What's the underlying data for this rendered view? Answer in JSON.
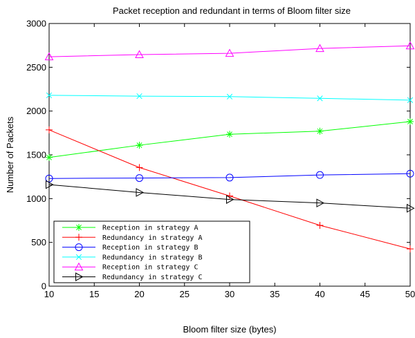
{
  "chart_data": {
    "type": "line",
    "title": "Packet reception and redundant in terms of Bloom filter size",
    "xlabel": "Bloom filter size (bytes)",
    "ylabel": "Number of Packets",
    "xlim": [
      10,
      50
    ],
    "ylim": [
      0,
      3000
    ],
    "x": [
      10,
      20,
      30,
      40,
      50
    ],
    "xticks": [
      10,
      15,
      20,
      25,
      30,
      35,
      40,
      45,
      50
    ],
    "yticks": [
      0,
      500,
      1000,
      1500,
      2000,
      2500,
      3000
    ],
    "grid": false,
    "legend_position": "bottom-left",
    "series": [
      {
        "name": "Reception in strategy A",
        "color": "#00ff00",
        "marker": "asterisk",
        "values": [
          1470,
          1610,
          1735,
          1770,
          1880
        ]
      },
      {
        "name": "Redundancy in strategy A",
        "color": "#ff0000",
        "marker": "plus",
        "values": [
          1785,
          1355,
          1030,
          695,
          425
        ]
      },
      {
        "name": "Reception in strategy B",
        "color": "#0000ff",
        "marker": "circle",
        "values": [
          1230,
          1235,
          1240,
          1270,
          1285
        ]
      },
      {
        "name": "Redundancy in strategy B",
        "color": "#00ffff",
        "marker": "x",
        "values": [
          2180,
          2170,
          2165,
          2145,
          2125
        ]
      },
      {
        "name": "Reception in strategy C",
        "color": "#ff00ff",
        "marker": "triangle-up",
        "values": [
          2620,
          2645,
          2660,
          2715,
          2745
        ]
      },
      {
        "name": "Redundancy in strategy C",
        "color": "#000000",
        "marker": "triangle-right",
        "values": [
          1160,
          1070,
          990,
          950,
          890
        ]
      }
    ]
  }
}
